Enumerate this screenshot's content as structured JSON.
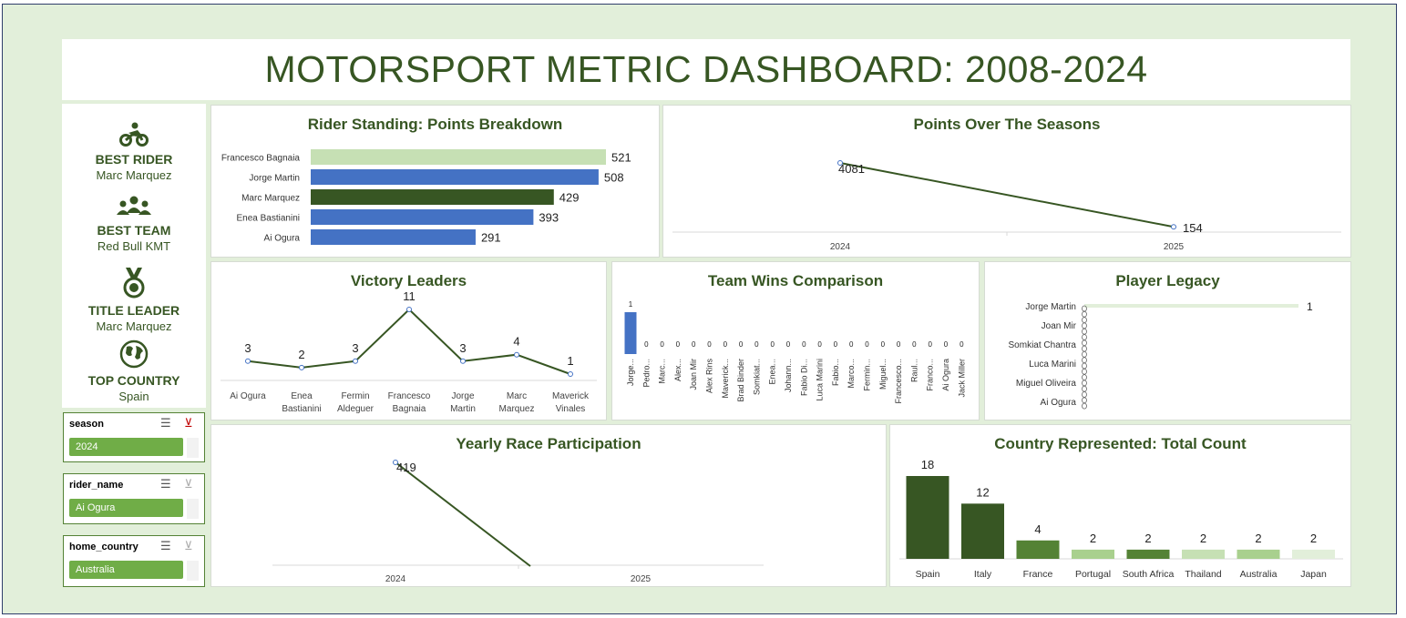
{
  "title": "MOTORSPORT METRIC DASHBOARD: 2008-2024",
  "kpis": [
    {
      "icon": "motorbike-rider-icon",
      "label": "BEST RIDER",
      "value": "Marc Marquez"
    },
    {
      "icon": "team-people-icon",
      "label": "BEST TEAM",
      "value": "Red Bull KMT"
    },
    {
      "icon": "medal-icon",
      "label": "TITLE LEADER",
      "value": "Marc Marquez"
    },
    {
      "icon": "globe-icon",
      "label": "TOP COUNTRY",
      "value": "Spain"
    }
  ],
  "slicers": [
    {
      "header": "season",
      "selected": "2024"
    },
    {
      "header": "rider_name",
      "selected": "Ai Ogura"
    },
    {
      "header": "home_country",
      "selected": "Australia"
    }
  ],
  "panel_titles": {
    "rider_standing": "Rider Standing: Points Breakdown",
    "points_seasons": "Points Over The Seasons",
    "victory_leaders": "Victory Leaders",
    "team_wins": "Team Wins Comparison",
    "player_legacy": "Player Legacy",
    "yearly_race": "Yearly Race Participation",
    "country_count": "Country Represented: Total Count"
  },
  "colors": {
    "dark_green": "#375623",
    "mid_green": "#548235",
    "light_green": "#c6e0b4",
    "blue": "#4472c4",
    "pale_green": "#a9d08e"
  },
  "chart_data": [
    {
      "id": "rider_standing",
      "type": "bar",
      "orientation": "horizontal",
      "title": "Rider Standing: Points Breakdown",
      "categories": [
        "Francesco Bagnaia",
        "Jorge Martin",
        "Marc Marquez",
        "Enea Bastianini",
        "Ai Ogura"
      ],
      "values": [
        521,
        508,
        429,
        393,
        291
      ],
      "bar_colors": [
        "#c6e0b4",
        "#4472c4",
        "#375623",
        "#4472c4",
        "#4472c4"
      ],
      "data_labels": true
    },
    {
      "id": "points_seasons",
      "type": "line",
      "title": "Points Over The Seasons",
      "categories": [
        "2024",
        "2025"
      ],
      "values": [
        4081,
        154
      ],
      "data_labels": true
    },
    {
      "id": "victory_leaders",
      "type": "line",
      "title": "Victory Leaders",
      "categories": [
        "Ai Ogura",
        "Enea Bastianini",
        "Fermin Aldeguer",
        "Francesco Bagnaia",
        "Jorge Martin",
        "Marc Marquez",
        "Maverick Vinales"
      ],
      "category_lines": [
        [
          "Ai Ogura"
        ],
        [
          "Enea",
          "Bastianini"
        ],
        [
          "Fermin",
          "Aldeguer"
        ],
        [
          "Francesco",
          "Bagnaia"
        ],
        [
          "Jorge",
          "Martin"
        ],
        [
          "Marc",
          "Marquez"
        ],
        [
          "Maverick",
          "Vinales"
        ]
      ],
      "values": [
        3,
        2,
        3,
        11,
        3,
        4,
        1
      ],
      "data_labels": true
    },
    {
      "id": "team_wins",
      "type": "bar",
      "title": "Team Wins Comparison",
      "categories": [
        "Jorge...",
        "Pedro...",
        "Marc...",
        "Alex...",
        "Joan Mir",
        "Alex Rins",
        "Maverick...",
        "Brad Binder",
        "Somkiat...",
        "Enea...",
        "Johann...",
        "Fabio Di...",
        "Luca Marini",
        "Fabio...",
        "Marco...",
        "Fermin...",
        "Miguel...",
        "Francesco...",
        "Raul...",
        "Franco...",
        "Ai Ogura",
        "Jack Miller"
      ],
      "values": [
        1,
        0,
        0,
        0,
        0,
        0,
        0,
        0,
        0,
        0,
        0,
        0,
        0,
        0,
        0,
        0,
        0,
        0,
        0,
        0,
        0,
        0
      ],
      "data_labels": true
    },
    {
      "id": "player_legacy",
      "type": "bar",
      "orientation": "horizontal",
      "title": "Player Legacy",
      "categories": [
        "Jorge Martin",
        "Joan Mir",
        "Somkiat Chantra",
        "Luca Marini",
        "Miguel Oliveira",
        "Ai Ogura"
      ],
      "values": [
        1,
        0,
        0,
        0,
        0,
        0
      ],
      "data_labels": [
        "1"
      ]
    },
    {
      "id": "yearly_race",
      "type": "line",
      "title": "Yearly Race Participation",
      "categories": [
        "2024",
        "2025"
      ],
      "values": [
        419,
        null
      ],
      "data_labels": true
    },
    {
      "id": "country_count",
      "type": "bar",
      "title": "Country Represented: Total Count",
      "categories": [
        "Spain",
        "Italy",
        "France",
        "Portugal",
        "South Africa",
        "Thailand",
        "Australia",
        "Japan"
      ],
      "values": [
        18,
        12,
        4,
        2,
        2,
        2,
        2,
        2
      ],
      "bar_colors": [
        "#375623",
        "#375623",
        "#548235",
        "#a9d08e",
        "#548235",
        "#c6e0b4",
        "#a9d08e",
        "#e2efda"
      ],
      "data_labels": true
    }
  ]
}
